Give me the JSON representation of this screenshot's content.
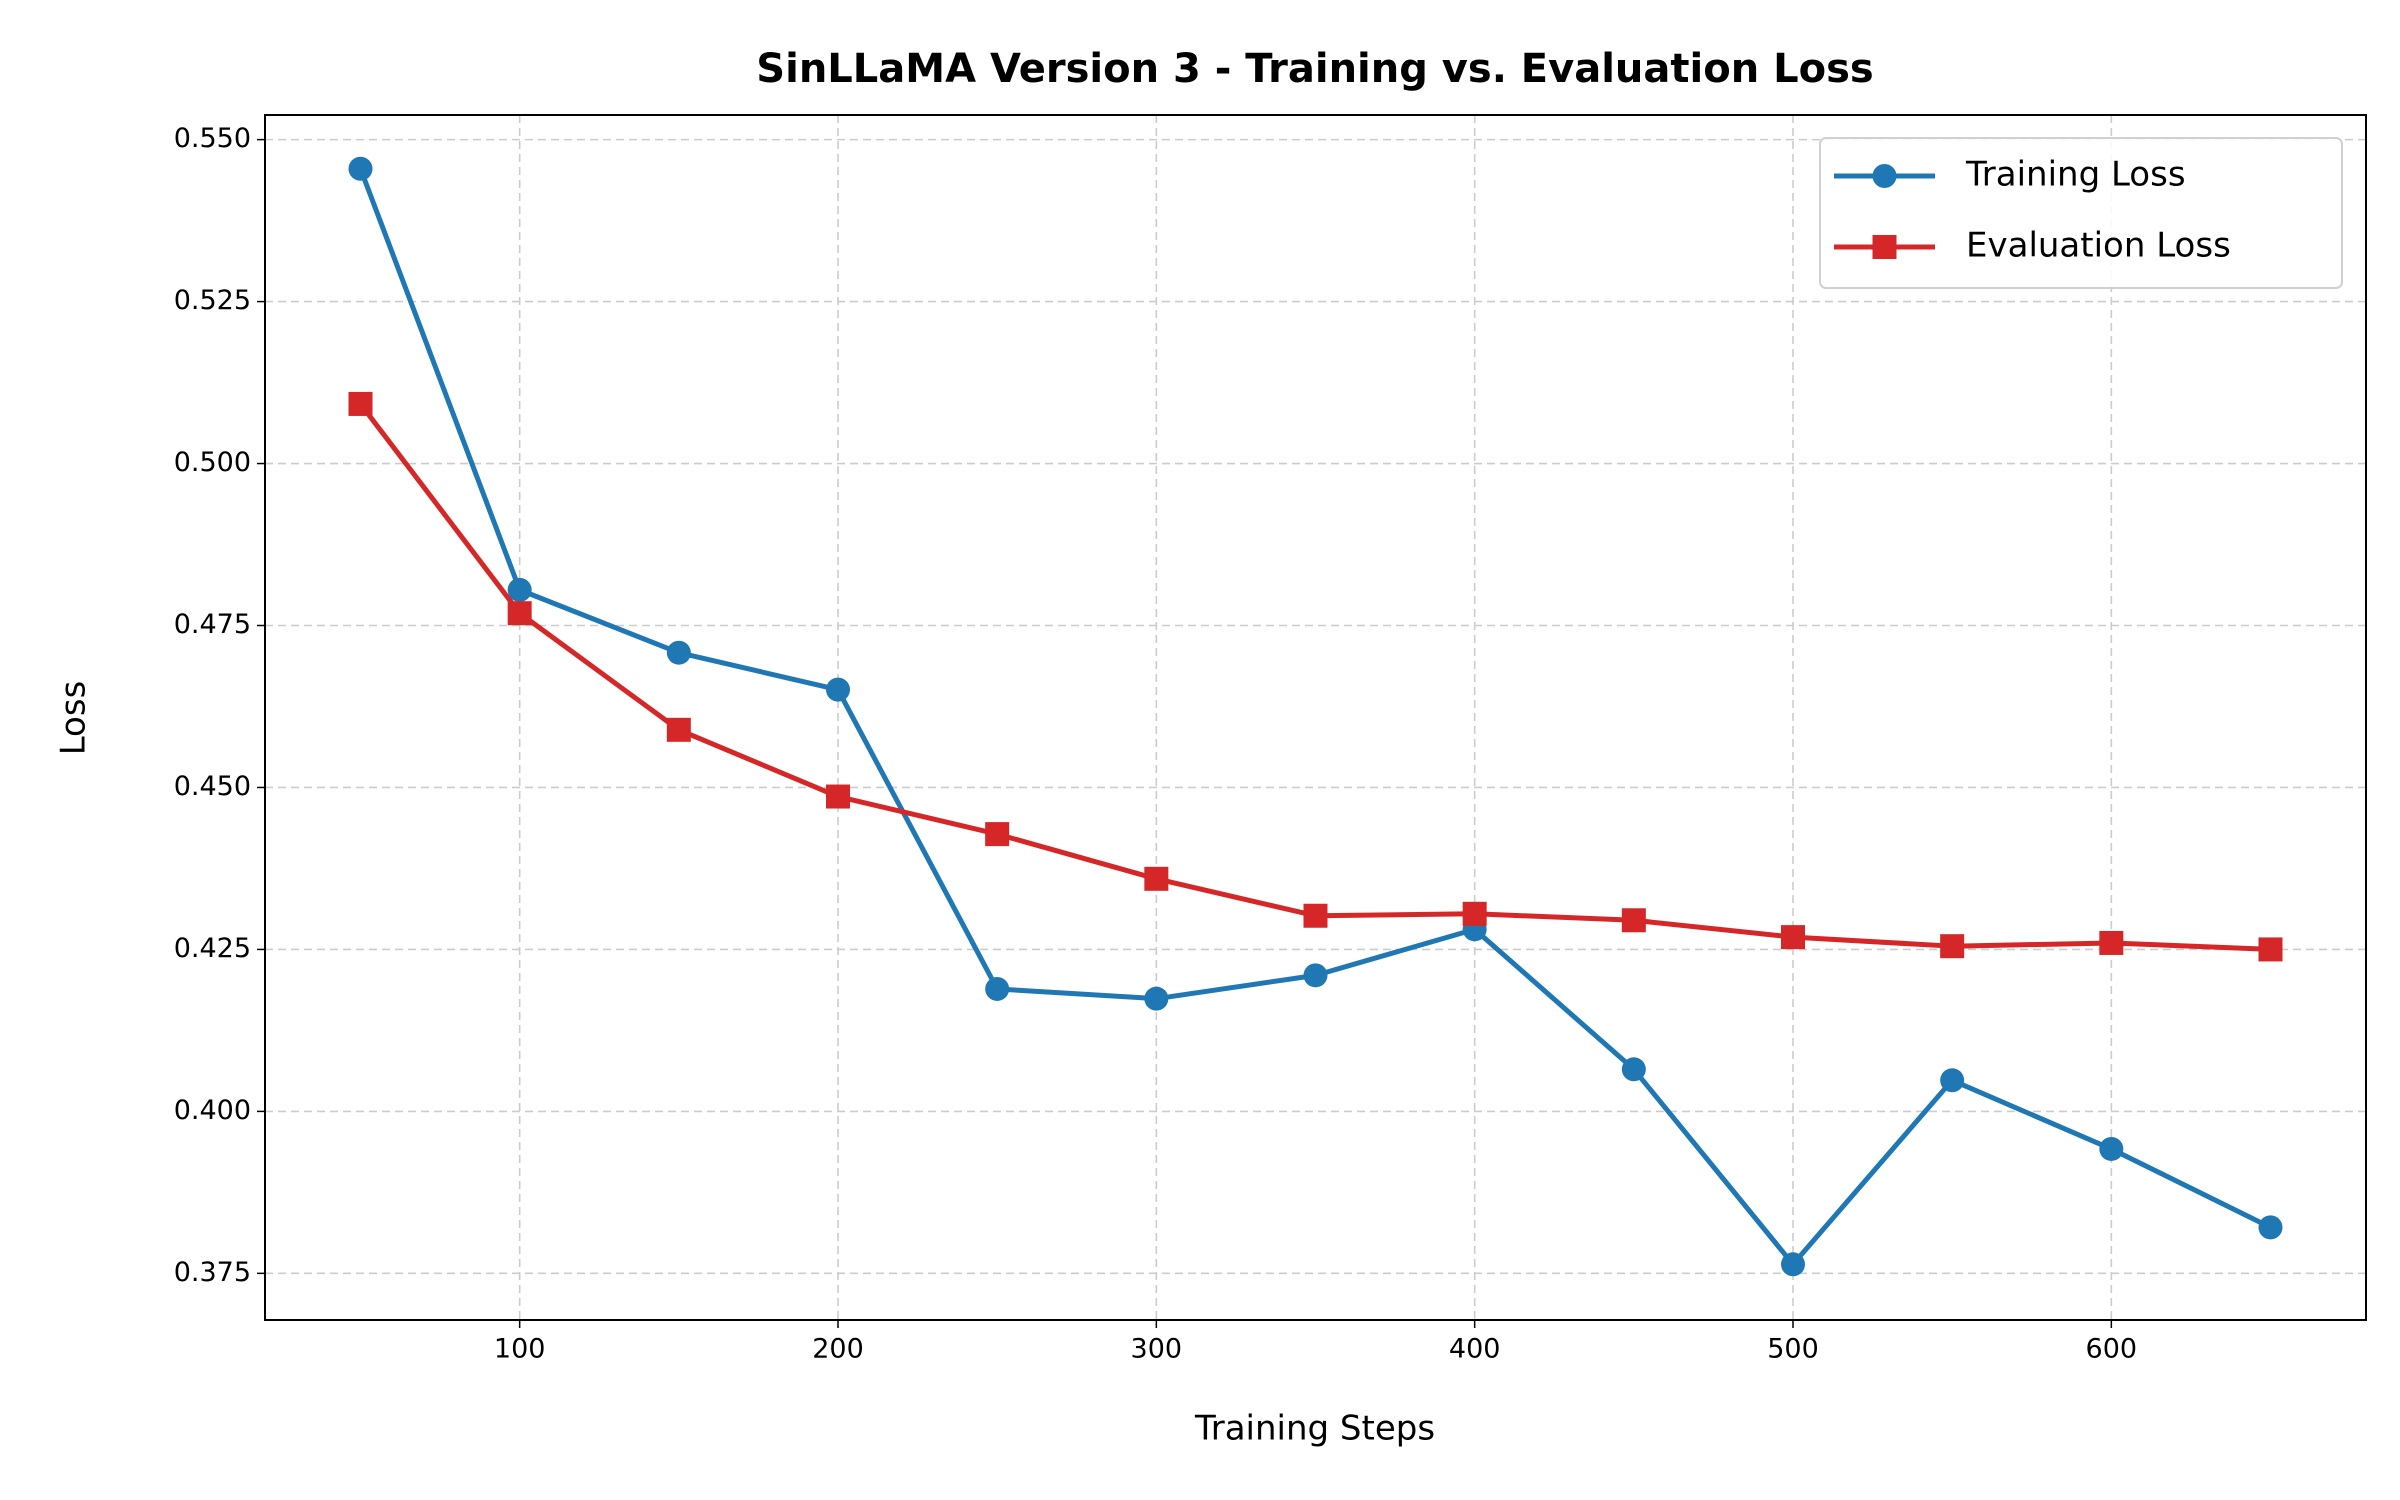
{
  "chart_data": {
    "type": "line",
    "title": "SinLLaMA Version 3 - Training vs. Evaluation Loss",
    "x_label": "Training Steps",
    "y_label": "Loss",
    "x": [
      50,
      100,
      150,
      200,
      250,
      300,
      350,
      400,
      450,
      500,
      550,
      600,
      650
    ],
    "series": [
      {
        "name": "Training Loss",
        "color": "#1f77b4",
        "marker": "circle",
        "values": [
          0.5455,
          0.4805,
          0.4708,
          0.4651,
          0.4189,
          0.4174,
          0.421,
          0.4281,
          0.4065,
          0.3764,
          0.4048,
          0.3942,
          0.3821
        ]
      },
      {
        "name": "Evaluation Loss",
        "color": "#d62728",
        "marker": "square",
        "values": [
          0.5092,
          0.4769,
          0.4589,
          0.4486,
          0.4428,
          0.4359,
          0.4302,
          0.4305,
          0.4295,
          0.4269,
          0.4255,
          0.426,
          0.425
        ]
      }
    ],
    "xlim": [
      20,
      680
    ],
    "xticks": [
      100,
      200,
      300,
      400,
      500,
      600
    ],
    "ylim": [
      0.3678,
      0.5538
    ],
    "yticks": [
      {
        "value": 0.375,
        "label": "0.375"
      },
      {
        "value": 0.4,
        "label": "0.400"
      },
      {
        "value": 0.425,
        "label": "0.425"
      },
      {
        "value": 0.45,
        "label": "0.450"
      },
      {
        "value": 0.475,
        "label": "0.475"
      },
      {
        "value": 0.5,
        "label": "0.500"
      },
      {
        "value": 0.525,
        "label": "0.525"
      },
      {
        "value": 0.55,
        "label": "0.550"
      }
    ],
    "grid": true,
    "legend": "upper-right"
  }
}
